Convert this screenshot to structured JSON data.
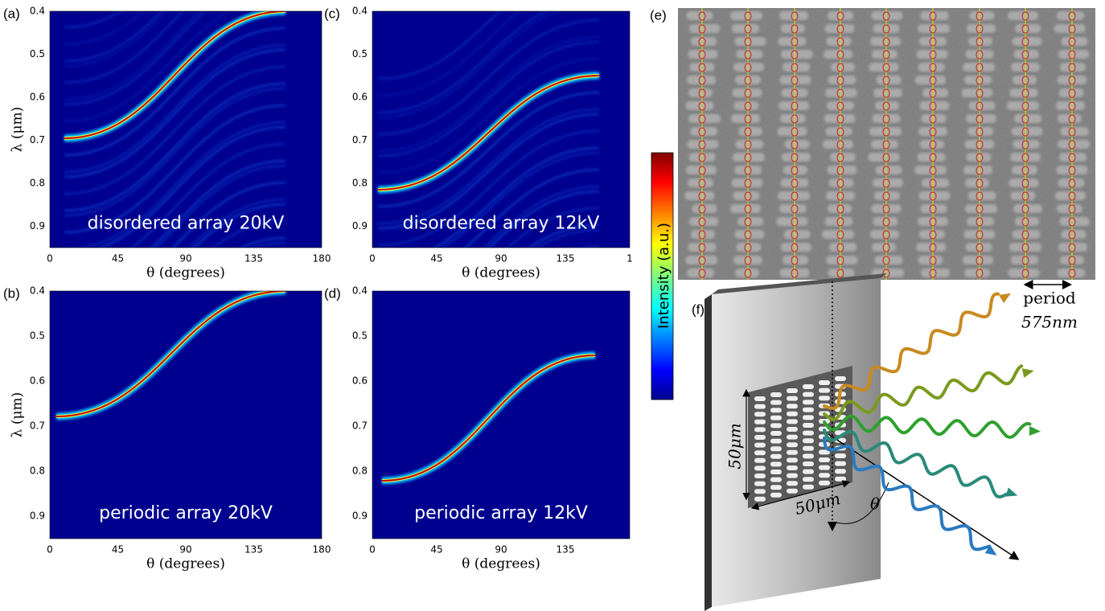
{
  "panels": [
    {
      "label": "(a)",
      "annotation": "disordered array 20kV",
      "xlabel": "θ (degrees)",
      "ylabel": "λ (μm)",
      "xticks": [
        "0",
        "45",
        "90",
        "135",
        "180"
      ],
      "yticks": [
        "0.4",
        "0.5",
        "0.6",
        "0.7",
        "0.8",
        "0.9"
      ]
    },
    {
      "label": "(c)",
      "annotation": "disordered array 12kV",
      "xlabel": "θ (degrees)",
      "xticks": [
        "0",
        "45",
        "90",
        "135",
        "1"
      ],
      "yticks": [
        "0.4",
        "0.5",
        "0.6",
        "0.7",
        "0.8",
        "0.9"
      ]
    },
    {
      "label": "(b)",
      "annotation": "periodic array 20kV",
      "xlabel": "θ (degrees)",
      "ylabel": "λ (μm)",
      "xticks": [
        "0",
        "45",
        "90",
        "135",
        "180"
      ],
      "yticks": [
        "0.4",
        "0.5",
        "0.6",
        "0.7",
        "0.8",
        "0.9"
      ]
    },
    {
      "label": "(d)",
      "annotation": "periodic array 12kV",
      "xlabel": "θ (degrees)",
      "xticks": [
        "0",
        "45",
        "90",
        "135"
      ],
      "yticks": [
        "0.4",
        "0.5",
        "0.6",
        "0.7",
        "0.8",
        "0.9"
      ]
    }
  ],
  "colorbar": {
    "label": "Intensity (a.u.)"
  },
  "sem": {
    "label": "(e)",
    "period_label": "period",
    "period_value": "575nm"
  },
  "schematic": {
    "label": "(f)",
    "width_label": "50μm",
    "height_label": "50μm",
    "angle_label": "θ"
  }
}
